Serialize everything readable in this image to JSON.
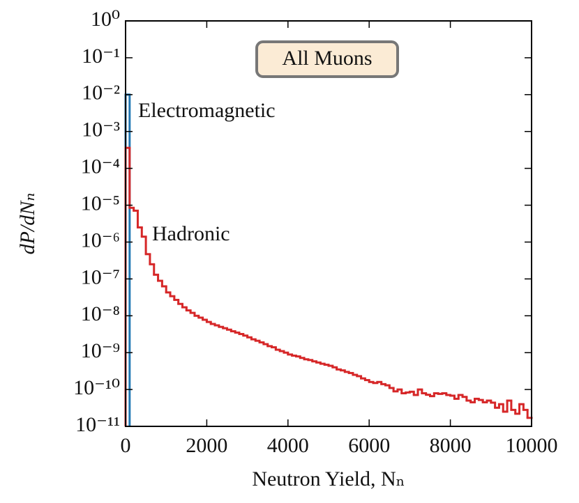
{
  "chart_data": {
    "type": "step-histogram",
    "xlabel": "Neutron Yield, Nₙ",
    "ylabel": "dP/dNₙ",
    "annotations": [
      "All Muons"
    ],
    "log_y": true,
    "xlim": [
      0,
      10000
    ],
    "ylim": [
      1e-11,
      1
    ],
    "xticks": [
      0,
      2000,
      4000,
      6000,
      8000,
      10000
    ],
    "yticks": [
      {
        "value": 1,
        "label": "10⁰"
      },
      {
        "value": 0.1,
        "label": "10⁻¹"
      },
      {
        "value": 0.01,
        "label": "10⁻²"
      },
      {
        "value": 0.001,
        "label": "10⁻³"
      },
      {
        "value": 0.0001,
        "label": "10⁻⁴"
      },
      {
        "value": 1e-05,
        "label": "10⁻⁵"
      },
      {
        "value": 1e-06,
        "label": "10⁻⁶"
      },
      {
        "value": 1e-07,
        "label": "10⁻⁷"
      },
      {
        "value": 1e-08,
        "label": "10⁻⁸"
      },
      {
        "value": 1e-09,
        "label": "10⁻⁹"
      },
      {
        "value": 1e-10,
        "label": "10⁻¹⁰"
      },
      {
        "value": 1e-11,
        "label": "10⁻¹¹"
      }
    ],
    "series": [
      {
        "name": "Electromagnetic",
        "color": "#1f77b4",
        "bins": [
          0,
          100
        ],
        "values": [
          0.01
        ]
      },
      {
        "name": "Hadronic",
        "color": "#d62728",
        "bins": [
          0,
          100,
          200,
          300,
          400,
          500,
          600,
          700,
          800,
          900,
          1000,
          1100,
          1200,
          1300,
          1400,
          1500,
          1600,
          1700,
          1800,
          1900,
          2000,
          2100,
          2200,
          2300,
          2400,
          2500,
          2600,
          2700,
          2800,
          2900,
          3000,
          3100,
          3200,
          3300,
          3400,
          3500,
          3600,
          3700,
          3800,
          3900,
          4000,
          4100,
          4200,
          4300,
          4400,
          4500,
          4600,
          4700,
          4800,
          4900,
          5000,
          5100,
          5200,
          5300,
          5400,
          5500,
          5600,
          5700,
          5800,
          5900,
          6000,
          6100,
          6200,
          6300,
          6400,
          6500,
          6600,
          6700,
          6800,
          6900,
          7000,
          7100,
          7200,
          7300,
          7400,
          7500,
          7600,
          7700,
          7800,
          7900,
          8000,
          8100,
          8200,
          8300,
          8400,
          8500,
          8600,
          8700,
          8800,
          8900,
          9000,
          9100,
          9200,
          9300,
          9400,
          9500,
          9600,
          9700,
          9800,
          9900,
          10000
        ],
        "values": [
          0.00036,
          8.5e-06,
          7.1e-06,
          2.5e-06,
          1.4e-06,
          4.7e-07,
          2.5e-07,
          1.3e-07,
          8.9e-08,
          6.3e-08,
          4.3e-08,
          3.4e-08,
          2.7e-08,
          2.1e-08,
          1.7e-08,
          1.4e-08,
          1.2e-08,
          1e-08,
          8.9e-09,
          7.8e-09,
          6.8e-09,
          6e-09,
          5.5e-09,
          5e-09,
          4.6e-09,
          4.2e-09,
          3.8e-09,
          3.5e-09,
          3.2e-09,
          2.9e-09,
          2.6e-09,
          2.3e-09,
          2.1e-09,
          1.9e-09,
          1.7e-09,
          1.5e-09,
          1.4e-09,
          1.2e-09,
          1.1e-09,
          1e-09,
          8.9e-10,
          8.3e-10,
          7.9e-10,
          7.2e-10,
          6.6e-10,
          6.3e-10,
          5.8e-10,
          5.4e-10,
          5e-10,
          4.7e-10,
          4.4e-10,
          4e-10,
          3.5e-10,
          3.3e-10,
          3e-10,
          2.8e-10,
          2.5e-10,
          2.3e-10,
          2e-10,
          1.8e-10,
          1.6e-10,
          1.5e-10,
          1.6e-10,
          1.4e-10,
          1.3e-10,
          1.1e-10,
          8.9e-11,
          1e-10,
          7.9e-11,
          8.3e-11,
          8.7e-11,
          7.1e-11,
          1e-10,
          7.9e-11,
          7.2e-11,
          6.6e-11,
          7.9e-11,
          7.6e-11,
          7.9e-11,
          7.1e-11,
          6.8e-11,
          5.6e-11,
          7.1e-11,
          6.3e-11,
          5e-11,
          4.5e-11,
          5.6e-11,
          5.2e-11,
          4.5e-11,
          5e-11,
          4.4e-11,
          3.2e-11,
          4e-11,
          2.5e-11,
          5e-11,
          2.8e-11,
          2.2e-11,
          4e-11,
          2.8e-11,
          1.7e-11
        ]
      }
    ]
  }
}
